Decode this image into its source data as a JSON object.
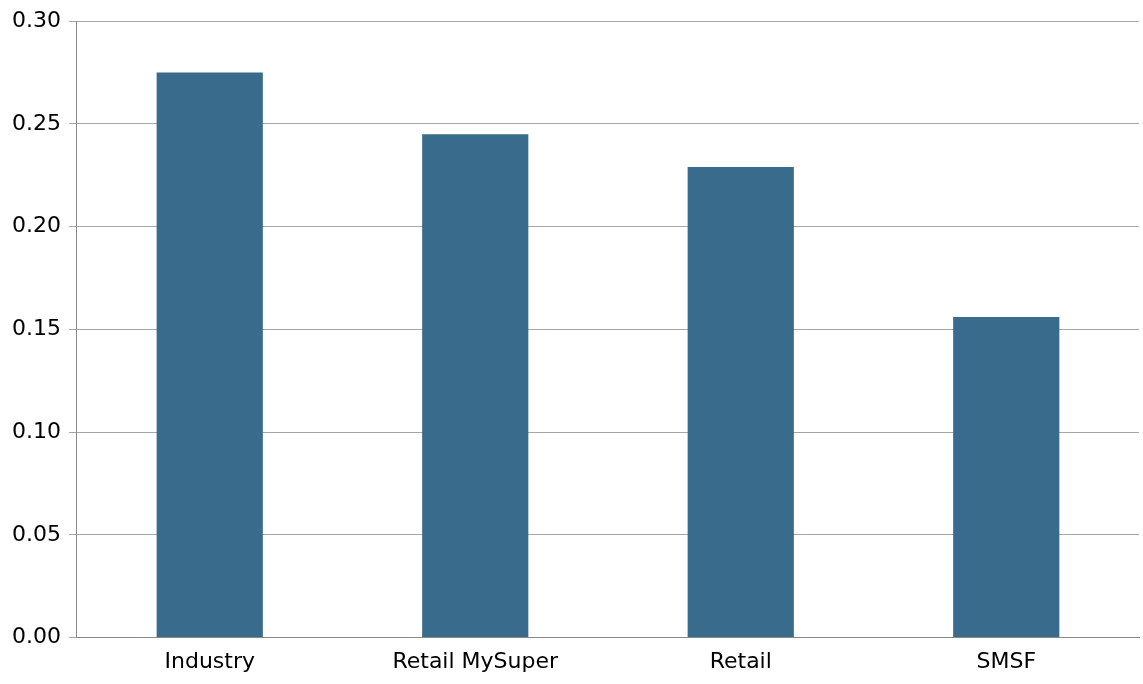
{
  "chart_data": {
    "type": "bar",
    "categories": [
      "Industry",
      "Retail MySuper",
      "Retail",
      "SMSF"
    ],
    "values": [
      0.275,
      0.245,
      0.229,
      0.156
    ],
    "color": "#386b8c",
    "ylim": [
      0,
      0.3
    ],
    "yticks": [
      {
        "value": 0,
        "label": "0.00"
      },
      {
        "value": 0.05,
        "label": "0.05"
      },
      {
        "value": 0.1,
        "label": "0.10"
      },
      {
        "value": 0.15,
        "label": "0.15"
      },
      {
        "value": 0.2,
        "label": "0.20"
      },
      {
        "value": 0.25,
        "label": "0.25"
      },
      {
        "value": 0.3,
        "label": "0.30"
      }
    ],
    "grid": "y",
    "legend": false
  }
}
